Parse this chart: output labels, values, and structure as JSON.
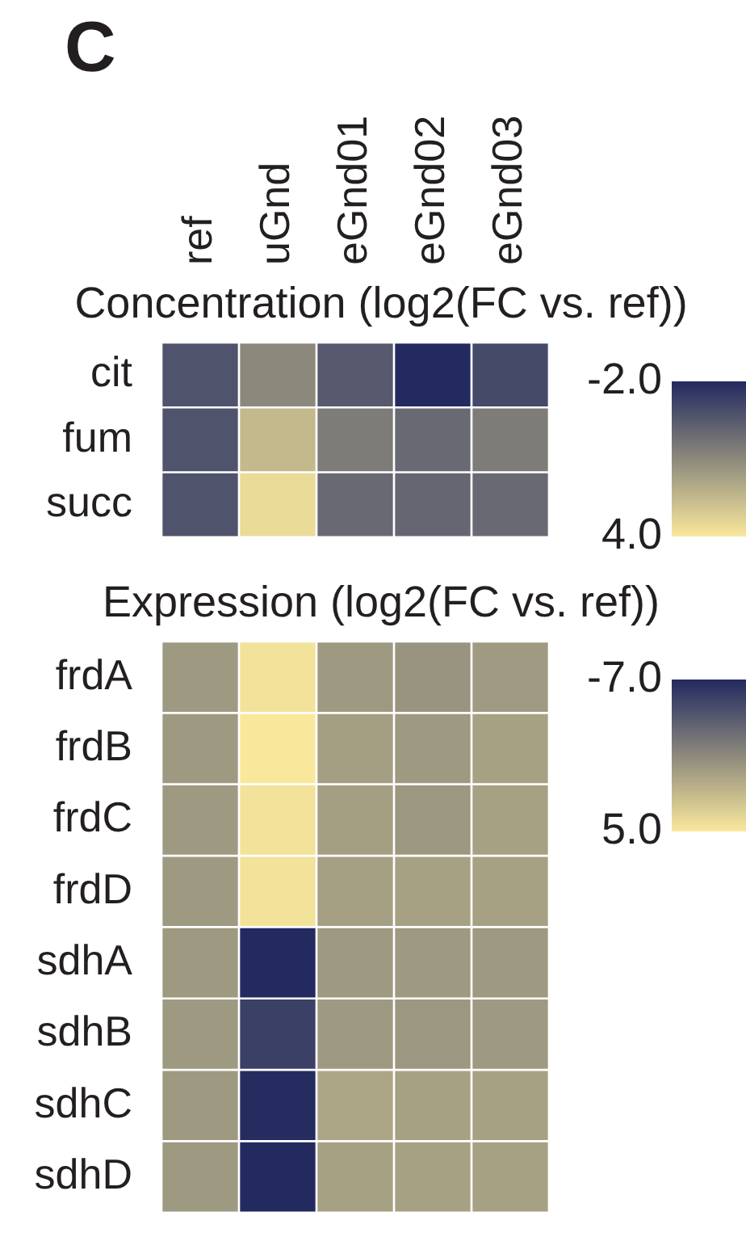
{
  "chart_data": [
    {
      "type": "heatmap",
      "title": "Concentration (log2(FC vs. ref))",
      "annotations": [
        "C"
      ],
      "categories": [
        "ref",
        "uGnd",
        "eGnd01",
        "eGnd02",
        "eGnd03"
      ],
      "y_categories": [
        "cit",
        "fum",
        "succ"
      ],
      "cells": [
        [
          -0.7,
          1.0,
          -0.5,
          -2.0,
          -1.0
        ],
        [
          -0.7,
          2.5,
          0.6,
          0.0,
          0.6
        ],
        [
          -0.7,
          3.6,
          0.0,
          -0.1,
          0.0
        ]
      ],
      "clim": [
        -2,
        4
      ],
      "cticks": [
        {
          "value": -2,
          "label": "-2.0"
        },
        {
          "value": 4,
          "label": "4.0"
        }
      ]
    },
    {
      "type": "heatmap",
      "title": "Expression (log2(FC vs. ref))",
      "tick_labels": "y",
      "categories": [
        "ref",
        "uGnd",
        "eGnd01",
        "eGnd02",
        "eGnd03"
      ],
      "y_categories": [
        "frdA",
        "frdB",
        "frdC",
        "frdD",
        "sdhA",
        "sdhB",
        "sdhC",
        "sdhD"
      ],
      "cells": [
        [
          0.0,
          4.6,
          0.0,
          -0.3,
          0.1
        ],
        [
          0.0,
          5.0,
          0.3,
          0.0,
          0.5
        ],
        [
          0.0,
          4.6,
          0.3,
          -0.1,
          0.5
        ],
        [
          0.0,
          4.6,
          0.4,
          0.5,
          0.5
        ],
        [
          0.0,
          -7.0,
          0.0,
          0.0,
          0.0
        ],
        [
          0.0,
          -5.6,
          0.0,
          -0.1,
          0.0
        ],
        [
          0.0,
          -6.9,
          0.8,
          0.5,
          0.5
        ],
        [
          0.0,
          -7.0,
          0.5,
          0.5,
          0.5
        ]
      ],
      "clim": [
        -7,
        5
      ],
      "cticks": [
        {
          "value": -7,
          "label": "-7.0"
        },
        {
          "value": 5,
          "label": "5.0"
        }
      ]
    }
  ]
}
